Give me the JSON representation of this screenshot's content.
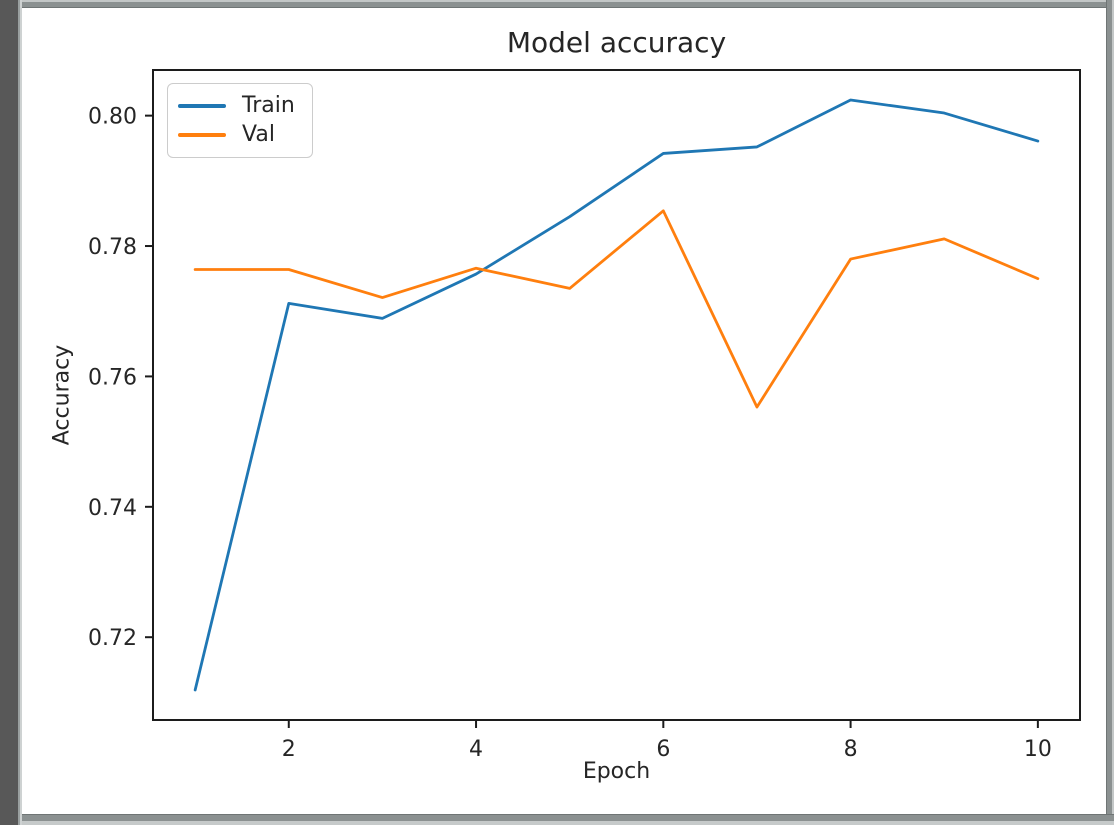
{
  "window": {
    "type": "figure-window"
  },
  "colors": {
    "axis": "#1c1c1c",
    "text": "#262626",
    "train_line": "#1f77b4",
    "val_line": "#ff7f0e",
    "legend_border": "#cccccc",
    "figure_background": "#ffffff",
    "frame_gray": "#8b9191",
    "left_bar_gray": "#585858"
  },
  "chart_data": {
    "type": "line",
    "title": "Model accuracy",
    "xlabel": "Epoch",
    "ylabel": "Accuracy",
    "x": [
      1,
      2,
      3,
      4,
      5,
      6,
      7,
      8,
      9,
      10
    ],
    "series": [
      {
        "name": "Train",
        "color": "#1f77b4",
        "values": [
          0.7119,
          0.7712,
          0.7689,
          0.7757,
          0.7845,
          0.7942,
          0.7952,
          0.8024,
          0.8004,
          0.7961
        ]
      },
      {
        "name": "Val",
        "color": "#ff7f0e",
        "values": [
          0.7764,
          0.7764,
          0.7721,
          0.7766,
          0.7735,
          0.7854,
          0.7553,
          0.778,
          0.7811,
          0.775
        ]
      }
    ],
    "xlim": [
      0.55,
      10.45
    ],
    "ylim": [
      0.7073,
      0.807
    ],
    "xticks": [
      2,
      4,
      6,
      8,
      10
    ],
    "xtick_labels": [
      "2",
      "4",
      "6",
      "8",
      "10"
    ],
    "yticks": [
      0.72,
      0.74,
      0.76,
      0.78,
      0.8
    ],
    "ytick_labels": [
      "0.72",
      "0.74",
      "0.76",
      "0.78",
      "0.80"
    ],
    "legend_position": "upper left",
    "legend_entries": [
      "Train",
      "Val"
    ],
    "grid": false
  }
}
